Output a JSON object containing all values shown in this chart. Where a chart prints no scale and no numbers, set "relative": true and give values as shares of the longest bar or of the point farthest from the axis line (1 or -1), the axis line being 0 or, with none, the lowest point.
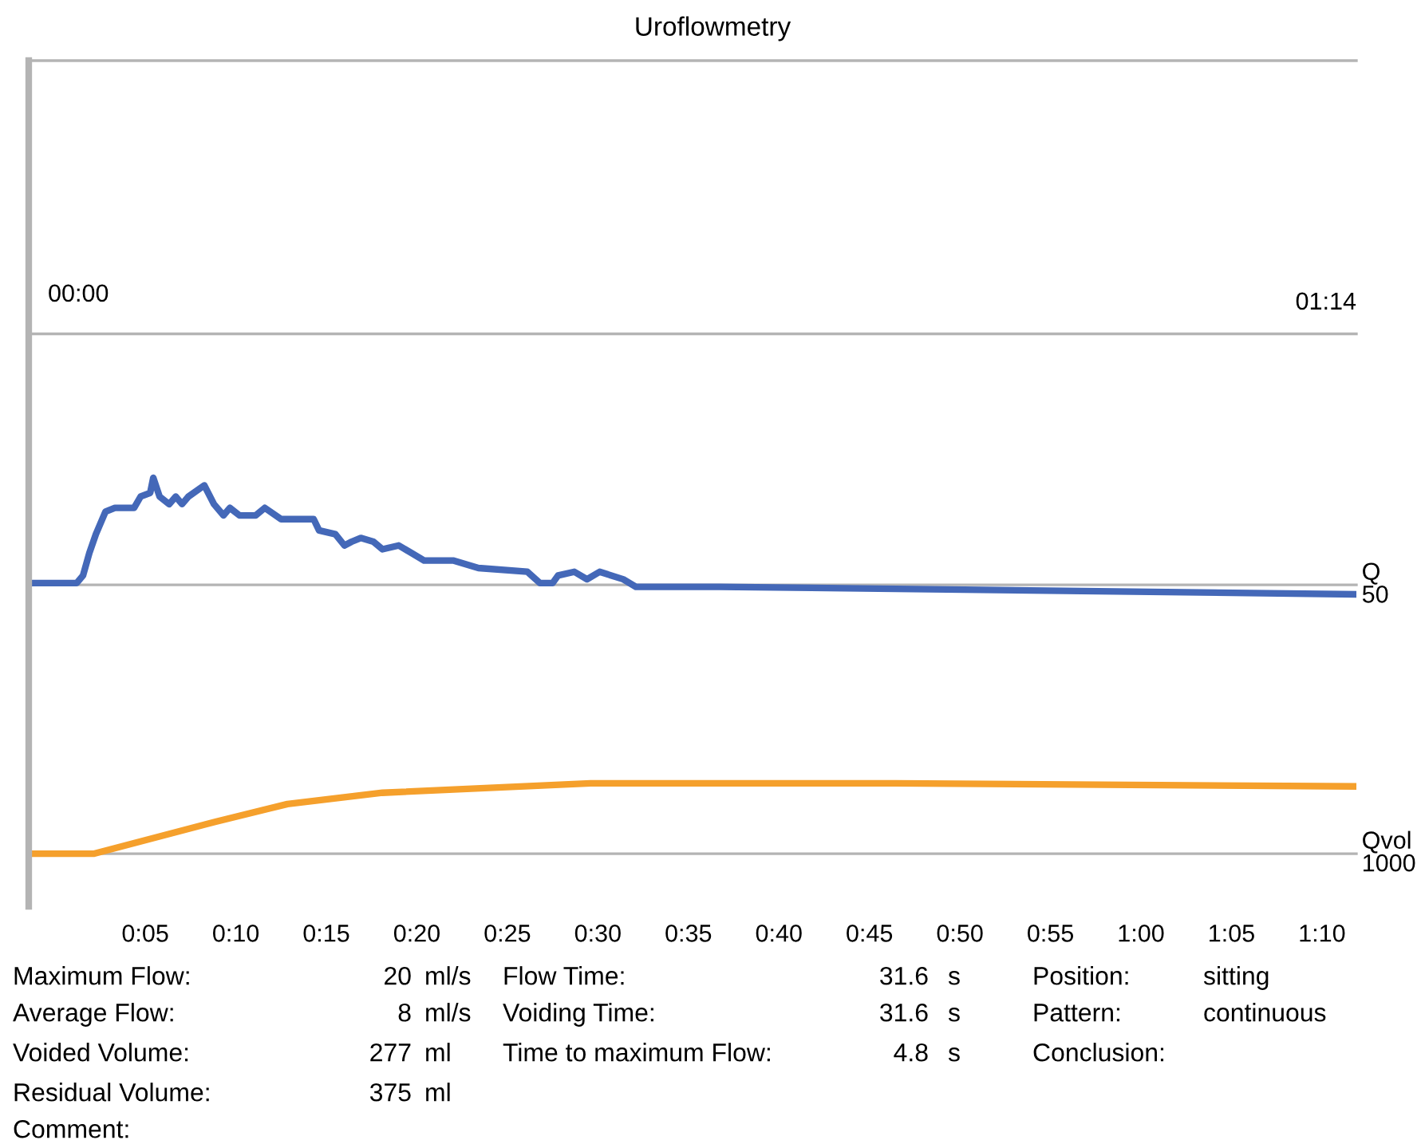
{
  "chart_data": {
    "type": "line",
    "title": "Uroflowmetry",
    "relative": true,
    "xlim": [
      -1.44,
      71.9
    ],
    "xticks": [
      {
        "value": 5,
        "label": "0:05"
      },
      {
        "value": 10,
        "label": "0:10"
      },
      {
        "value": 15,
        "label": "0:15"
      },
      {
        "value": 20,
        "label": "0:20"
      },
      {
        "value": 25,
        "label": "0:25"
      },
      {
        "value": 30,
        "label": "0:30"
      },
      {
        "value": 35,
        "label": "0:35"
      },
      {
        "value": 40,
        "label": "0:40"
      },
      {
        "value": 45,
        "label": "0:45"
      },
      {
        "value": 50,
        "label": "0:50"
      },
      {
        "value": 55,
        "label": "0:55"
      },
      {
        "value": 60,
        "label": "1:00"
      },
      {
        "value": 65,
        "label": "1:05"
      },
      {
        "value": 70,
        "label": "1:10"
      }
    ],
    "series": [
      {
        "color": "#4468b8",
        "x": [
          -1.44,
          1.21,
          1.56,
          1.91,
          2.27,
          2.8,
          3.32,
          4.38,
          4.74,
          5.27,
          5.44,
          5.79,
          6.32,
          6.68,
          7.03,
          7.38,
          8.26,
          8.79,
          9.32,
          9.67,
          10.2,
          11.1,
          11.6,
          12.5,
          14.3,
          14.6,
          15.5,
          16.0,
          16.4,
          16.9,
          17.6,
          18.1,
          19.0,
          19.7,
          20.4,
          22.0,
          22.7,
          23.4,
          26.1,
          26.8,
          27.5,
          27.8,
          28.7,
          29.4,
          30.1,
          31.4,
          32.1,
          36.7,
          71.9
        ],
        "values": [
          0.72,
          0.72,
          0.74,
          0.8,
          0.85,
          0.91,
          0.92,
          0.92,
          0.95,
          0.96,
          1.0,
          0.95,
          0.93,
          0.95,
          0.93,
          0.95,
          0.98,
          0.93,
          0.9,
          0.92,
          0.9,
          0.9,
          0.92,
          0.89,
          0.89,
          0.86,
          0.85,
          0.82,
          0.83,
          0.84,
          0.83,
          0.81,
          0.82,
          0.8,
          0.78,
          0.78,
          0.77,
          0.76,
          0.75,
          0.72,
          0.72,
          0.74,
          0.75,
          0.73,
          0.75,
          0.73,
          0.71,
          0.71,
          0.69
        ]
      },
      {
        "color": "#f5a02c",
        "x": [
          -1.44,
          2.18,
          8.89,
          12.85,
          18.1,
          29.6,
          46.4,
          71.9
        ],
        "values": [
          0,
          0,
          0.085,
          0.132,
          0.162,
          0.187,
          0.187,
          0.179
        ]
      }
    ],
    "ref_lines": [
      {
        "axis": "y",
        "value": 0,
        "label": "Qvol\n1000",
        "color": "#b4b4b4"
      },
      {
        "axis": "y",
        "value": 0.715,
        "label": "Q\n50",
        "color": "#b4b4b4"
      },
      {
        "axis": "y",
        "value": 1.383,
        "color": "#b4b4b4"
      },
      {
        "axis": "y",
        "value": 2.11,
        "color": "#b4b4b4"
      }
    ],
    "annotations": [
      "00:00",
      "01:14",
      "Maximum Flow:",
      "20",
      "ml/s",
      "Flow Time:",
      "31.6",
      "s",
      "Position:",
      "sitting",
      "Average Flow:",
      "8",
      "ml/s",
      "Voiding Time:",
      "31.6",
      "s",
      "Pattern:",
      "continuous",
      "Voided Volume:",
      "277",
      "ml",
      "Time to maximum Flow:",
      "4.8",
      "s",
      "Conclusion:",
      "Residual Volume:",
      "375",
      "ml",
      "Comment:"
    ]
  }
}
